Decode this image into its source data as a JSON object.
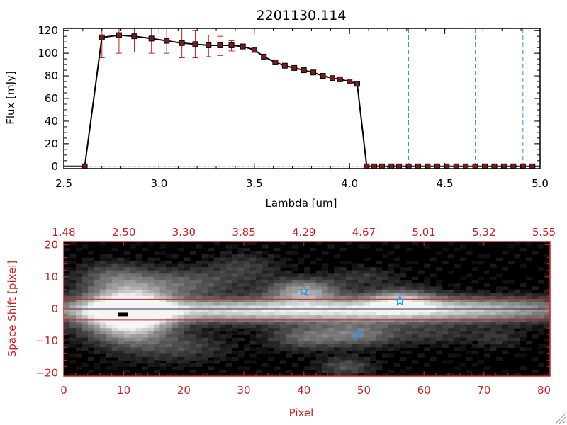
{
  "colors": {
    "axis_black": "#000000",
    "red": "#cc2222",
    "marker": "#7a1a1a",
    "vline": "#3a8fd0",
    "star": "#3b8fe0"
  },
  "chart_data": [
    {
      "type": "line",
      "title": "2201130.114",
      "xlabel": "Lambda [um]",
      "ylabel": "Flux [mJy]",
      "xlim": [
        2.5,
        5.0
      ],
      "ylim": [
        -2,
        122
      ],
      "xticks": [
        {
          "v": 2.5,
          "label": "2.5"
        },
        {
          "v": 3.0,
          "label": "3.0"
        },
        {
          "v": 3.5,
          "label": "3.5"
        },
        {
          "v": 4.0,
          "label": "4.0"
        },
        {
          "v": 4.5,
          "label": "4.5"
        },
        {
          "v": 5.0,
          "label": "5.0"
        }
      ],
      "yticks": [
        {
          "v": 0,
          "label": "0"
        },
        {
          "v": 20,
          "label": "20"
        },
        {
          "v": 40,
          "label": "40"
        },
        {
          "v": 60,
          "label": "60"
        },
        {
          "v": 80,
          "label": "80"
        },
        {
          "v": 100,
          "label": "100"
        },
        {
          "v": 120,
          "label": "120"
        }
      ],
      "x": [
        2.5,
        2.61,
        2.7,
        2.79,
        2.87,
        2.96,
        3.04,
        3.12,
        3.19,
        3.26,
        3.32,
        3.38,
        3.44,
        3.5,
        3.55,
        3.61,
        3.66,
        3.71,
        3.76,
        3.81,
        3.86,
        3.91,
        3.95,
        4.0,
        4.04,
        4.09,
        4.13,
        4.17,
        4.22,
        4.26,
        4.31,
        4.36,
        4.41,
        4.46,
        4.51,
        4.56,
        4.61,
        4.66,
        4.71,
        4.76,
        4.81,
        4.86,
        4.91,
        4.96,
        5.0
      ],
      "y": [
        0,
        0,
        114,
        116,
        115,
        113,
        111,
        109,
        108,
        107,
        107,
        107,
        106,
        103,
        97,
        92,
        89,
        87,
        85,
        83,
        80,
        78,
        77,
        75,
        73,
        0,
        0,
        0,
        0,
        0,
        0,
        0,
        0,
        0,
        0,
        0,
        0,
        0,
        0,
        0,
        0,
        0,
        0,
        0,
        0
      ],
      "markers_x": [
        2.61,
        2.7,
        2.79,
        2.87,
        2.96,
        3.04,
        3.12,
        3.19,
        3.26,
        3.32,
        3.38,
        3.44,
        3.5,
        3.55,
        3.61,
        3.66,
        3.71,
        3.76,
        3.81,
        3.86,
        3.91,
        3.95,
        4.0,
        4.04,
        4.09,
        4.13,
        4.17,
        4.22,
        4.26,
        4.31,
        4.36,
        4.41,
        4.46,
        4.51,
        4.56,
        4.61,
        4.66,
        4.71,
        4.76,
        4.81,
        4.86,
        4.91,
        4.96
      ],
      "markers_y": [
        0,
        114,
        116,
        115,
        113,
        111,
        109,
        108,
        107,
        107,
        107,
        106,
        103,
        97,
        92,
        89,
        87,
        85,
        83,
        80,
        78,
        77,
        75,
        73,
        0,
        0,
        0,
        0,
        0,
        0,
        0,
        0,
        0,
        0,
        0,
        0,
        0,
        0,
        0,
        0,
        0,
        0,
        0
      ],
      "error_bars": [
        {
          "x": 2.7,
          "lo": 96,
          "hi": 123
        },
        {
          "x": 2.79,
          "lo": 100,
          "hi": 123
        },
        {
          "x": 2.87,
          "lo": 101,
          "hi": 123
        },
        {
          "x": 2.96,
          "lo": 100,
          "hi": 123
        },
        {
          "x": 3.04,
          "lo": 100,
          "hi": 122
        },
        {
          "x": 3.12,
          "lo": 96,
          "hi": 122
        },
        {
          "x": 3.19,
          "lo": 96,
          "hi": 120
        },
        {
          "x": 3.26,
          "lo": 97,
          "hi": 116
        },
        {
          "x": 3.32,
          "lo": 98,
          "hi": 115
        },
        {
          "x": 3.38,
          "lo": 102,
          "hi": 111
        }
      ],
      "vlines_x": [
        4.31,
        4.66,
        4.91
      ],
      "zero_line": 0
    },
    {
      "type": "heatmap",
      "xlabel": "Pixel",
      "ylabel": "Space Shift [pixel]",
      "xlim": [
        0,
        81
      ],
      "ylim": [
        -21,
        21
      ],
      "xticks": [
        {
          "v": 0,
          "label": "0"
        },
        {
          "v": 10,
          "label": "10"
        },
        {
          "v": 20,
          "label": "20"
        },
        {
          "v": 30,
          "label": "30"
        },
        {
          "v": 40,
          "label": "40"
        },
        {
          "v": 50,
          "label": "50"
        },
        {
          "v": 60,
          "label": "60"
        },
        {
          "v": 70,
          "label": "70"
        },
        {
          "v": 80,
          "label": "80"
        }
      ],
      "yticks": [
        {
          "v": -20,
          "label": "−20"
        },
        {
          "v": -10,
          "label": "−10"
        },
        {
          "v": 0,
          "label": "0"
        },
        {
          "v": 10,
          "label": "10"
        },
        {
          "v": 20,
          "label": "20"
        }
      ],
      "top_ticks": [
        {
          "v": 0,
          "label": "1.48"
        },
        {
          "v": 10,
          "label": "2.50"
        },
        {
          "v": 20,
          "label": "3.30"
        },
        {
          "v": 30,
          "label": "3.85"
        },
        {
          "v": 40,
          "label": "4.29"
        },
        {
          "v": 50,
          "label": "4.67"
        },
        {
          "v": 60,
          "label": "5.01"
        },
        {
          "v": 70,
          "label": "5.32"
        },
        {
          "v": 80,
          "label": "5.55"
        }
      ],
      "aperture_lines_y": [
        3,
        -3.5
      ],
      "center_line_y": 0,
      "stars": [
        {
          "x": 40,
          "y": 5.5
        },
        {
          "x": 56,
          "y": 2.5
        },
        {
          "x": 49,
          "y": -8
        }
      ],
      "blobs": [
        {
          "x": 10,
          "y": -1,
          "sx": 5,
          "sy": 5,
          "a": 1.0
        },
        {
          "x": 12,
          "y": -2,
          "sx": 4,
          "sy": 6,
          "a": 0.5
        },
        {
          "x": 30,
          "y": -0.5,
          "sx": 28,
          "sy": 2.2,
          "a": 0.55
        },
        {
          "x": 48,
          "y": -0.5,
          "sx": 25,
          "sy": 2.8,
          "a": 0.45
        },
        {
          "x": 70,
          "y": 0,
          "sx": 12,
          "sy": 2.5,
          "a": 0.25
        },
        {
          "x": 40,
          "y": 5.5,
          "sx": 4,
          "sy": 2.5,
          "a": 0.6
        },
        {
          "x": 56,
          "y": 2.5,
          "sx": 4,
          "sy": 2.5,
          "a": 0.55
        },
        {
          "x": 49,
          "y": -8,
          "sx": 5,
          "sy": 2.5,
          "a": 0.4
        },
        {
          "x": 40,
          "y": -9,
          "sx": 4,
          "sy": 2.5,
          "a": 0.3
        },
        {
          "x": 20,
          "y": 8,
          "sx": 6,
          "sy": 3,
          "a": 0.3
        },
        {
          "x": 8,
          "y": 10,
          "sx": 4,
          "sy": 3,
          "a": 0.25
        },
        {
          "x": 20,
          "y": -12,
          "sx": 5,
          "sy": 3,
          "a": 0.2
        },
        {
          "x": 30,
          "y": 13,
          "sx": 4,
          "sy": 3,
          "a": 0.18
        },
        {
          "x": 47,
          "y": -18,
          "sx": 3,
          "sy": 2,
          "a": 0.25
        },
        {
          "x": 50,
          "y": 10,
          "sx": 4,
          "sy": 2,
          "a": 0.15
        },
        {
          "x": 62,
          "y": -8,
          "sx": 4,
          "sy": 2,
          "a": 0.15
        },
        {
          "x": 72,
          "y": -9,
          "sx": 3,
          "sy": 2,
          "a": 0.15
        }
      ]
    }
  ]
}
